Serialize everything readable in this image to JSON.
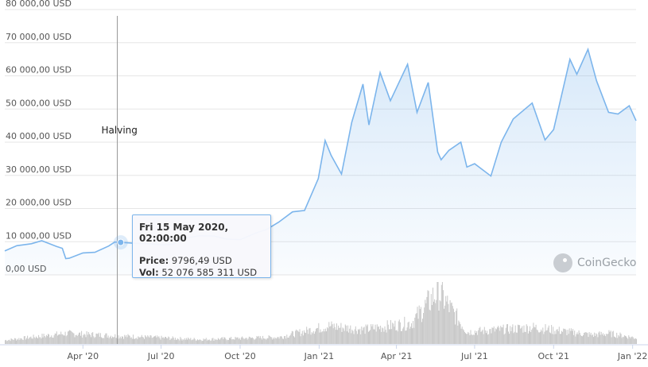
{
  "chart_data": {
    "type": "area",
    "y_unit": "USD",
    "ylim": [
      0,
      80000
    ],
    "y_ticks": [
      "0,00 USD",
      "10 000,00 USD",
      "20 000,00 USD",
      "30 000,00 USD",
      "40 000,00 USD",
      "50 000,00 USD",
      "60 000,00 USD",
      "70 000,00 USD",
      "80 000,00 USD"
    ],
    "x_ticks": [
      {
        "label": "Apr '20",
        "date": "2020-04-01"
      },
      {
        "label": "Jul '20",
        "date": "2020-07-01"
      },
      {
        "label": "Oct '20",
        "date": "2020-10-01"
      },
      {
        "label": "Jan '21",
        "date": "2021-01-01"
      },
      {
        "label": "Apr '21",
        "date": "2021-04-01"
      },
      {
        "label": "Jul '21",
        "date": "2021-07-01"
      },
      {
        "label": "Oct '21",
        "date": "2021-10-01"
      },
      {
        "label": "Jan '22",
        "date": "2022-01-01"
      }
    ],
    "xlim": [
      "2020-01-01",
      "2022-01-05"
    ],
    "grid": true,
    "series": [
      {
        "values": [
          [
            "2020-01-01",
            7200
          ],
          [
            "2020-01-15",
            8800
          ],
          [
            "2020-02-01",
            9400
          ],
          [
            "2020-02-13",
            10300
          ],
          [
            "2020-03-01",
            8600
          ],
          [
            "2020-03-08",
            8000
          ],
          [
            "2020-03-12",
            4900
          ],
          [
            "2020-03-16",
            5000
          ],
          [
            "2020-04-01",
            6600
          ],
          [
            "2020-04-15",
            6800
          ],
          [
            "2020-05-01",
            8700
          ],
          [
            "2020-05-08",
            9900
          ],
          [
            "2020-05-15",
            9796
          ],
          [
            "2020-06-01",
            9500
          ],
          [
            "2020-06-15",
            9400
          ],
          [
            "2020-07-01",
            9100
          ],
          [
            "2020-07-15",
            9200
          ],
          [
            "2020-07-27",
            11000
          ],
          [
            "2020-08-15",
            11800
          ],
          [
            "2020-09-01",
            11700
          ],
          [
            "2020-09-15",
            10800
          ],
          [
            "2020-10-01",
            10600
          ],
          [
            "2020-10-21",
            12800
          ],
          [
            "2020-11-01",
            13700
          ],
          [
            "2020-11-15",
            15900
          ],
          [
            "2020-12-01",
            19000
          ],
          [
            "2020-12-15",
            19400
          ],
          [
            "2020-12-31",
            29000
          ],
          [
            "2021-01-08",
            40500
          ],
          [
            "2021-01-15",
            36000
          ],
          [
            "2021-01-27",
            30400
          ],
          [
            "2021-02-08",
            46000
          ],
          [
            "2021-02-21",
            57500
          ],
          [
            "2021-02-28",
            45200
          ],
          [
            "2021-03-13",
            61000
          ],
          [
            "2021-03-25",
            52500
          ],
          [
            "2021-04-14",
            63500
          ],
          [
            "2021-04-25",
            49000
          ],
          [
            "2021-05-08",
            58000
          ],
          [
            "2021-05-19",
            37000
          ],
          [
            "2021-05-23",
            34700
          ],
          [
            "2021-06-01",
            37500
          ],
          [
            "2021-06-15",
            40000
          ],
          [
            "2021-06-22",
            32500
          ],
          [
            "2021-07-01",
            33500
          ],
          [
            "2021-07-20",
            29800
          ],
          [
            "2021-08-01",
            40000
          ],
          [
            "2021-08-15",
            47000
          ],
          [
            "2021-09-06",
            51800
          ],
          [
            "2021-09-21",
            40700
          ],
          [
            "2021-10-01",
            43800
          ],
          [
            "2021-10-20",
            65000
          ],
          [
            "2021-10-28",
            60500
          ],
          [
            "2021-11-10",
            68000
          ],
          [
            "2021-11-20",
            58500
          ],
          [
            "2021-12-04",
            49000
          ],
          [
            "2021-12-15",
            48500
          ],
          [
            "2021-12-28",
            51000
          ],
          [
            "2022-01-05",
            46500
          ]
        ]
      }
    ],
    "volume": {
      "ylim": [
        0,
        350000000000
      ],
      "values": [
        [
          "2020-01-01",
          25000000000
        ],
        [
          "2020-03-12",
          70000000000
        ],
        [
          "2020-05-15",
          52076585311
        ],
        [
          "2020-08-15",
          30000000000
        ],
        [
          "2020-11-15",
          45000000000
        ],
        [
          "2021-01-11",
          120000000000
        ],
        [
          "2021-02-21",
          95000000000
        ],
        [
          "2021-04-18",
          140000000000
        ],
        [
          "2021-05-19",
          350000000000
        ],
        [
          "2021-06-22",
          80000000000
        ],
        [
          "2021-09-07",
          110000000000
        ],
        [
          "2021-11-15",
          60000000000
        ],
        [
          "2021-12-04",
          70000000000
        ],
        [
          "2022-01-05",
          40000000000
        ]
      ]
    },
    "annotations": [
      {
        "label": "Halving",
        "date": "2020-05-11"
      }
    ],
    "tooltip": {
      "date": "Fri 15 May 2020, 02:00:00",
      "price_label": "Price:",
      "price_value": "9796,49 USD",
      "vol_label": "Vol:",
      "vol_value": "52 076 585 311 USD",
      "date_value": "2020-05-15"
    }
  },
  "branding": {
    "name": "CoinGecko",
    "logo_icon": "gecko-icon"
  },
  "colors": {
    "line": "#7cb5ec",
    "volume": "#c8c8c8",
    "grid": "#e6e6e6"
  }
}
